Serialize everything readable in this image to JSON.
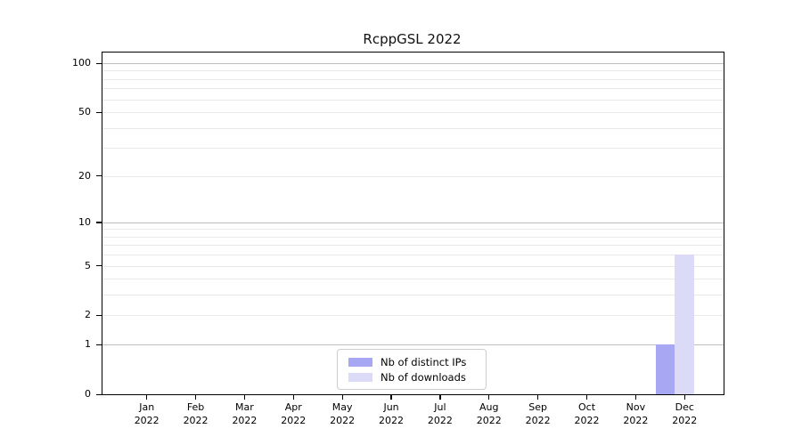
{
  "chart_data": {
    "type": "bar",
    "title": "RcppGSL 2022",
    "categories": [
      "Jan 2022",
      "Feb 2022",
      "Mar 2022",
      "Apr 2022",
      "May 2022",
      "Jun 2022",
      "Jul 2022",
      "Aug 2022",
      "Sep 2022",
      "Oct 2022",
      "Nov 2022",
      "Dec 2022"
    ],
    "series": [
      {
        "name": "Nb of distinct IPs",
        "color": "#a7a7f4",
        "values": [
          0,
          0,
          0,
          0,
          0,
          0,
          0,
          0,
          0,
          0,
          0,
          1
        ]
      },
      {
        "name": "Nb of downloads",
        "color": "#dbdbf8",
        "values": [
          0,
          0,
          0,
          0,
          0,
          0,
          0,
          0,
          0,
          0,
          0,
          6
        ]
      }
    ],
    "yscale": "log1p",
    "ylim": [
      0,
      117
    ],
    "yticks": [
      0,
      1,
      2,
      5,
      10,
      20,
      50,
      100
    ],
    "minor_gridlines": [
      2,
      3,
      4,
      5,
      6,
      7,
      8,
      9,
      20,
      30,
      40,
      50,
      60,
      70,
      80,
      90
    ],
    "major_gridlines": [
      1,
      10,
      100
    ],
    "grid": "on",
    "legend_position": "bottom-center",
    "colors": {
      "major_grid": "#bfbfbf",
      "minor_grid": "#e9e9e9",
      "spine": "#000000",
      "text": "#000000",
      "background": "#ffffff"
    }
  }
}
